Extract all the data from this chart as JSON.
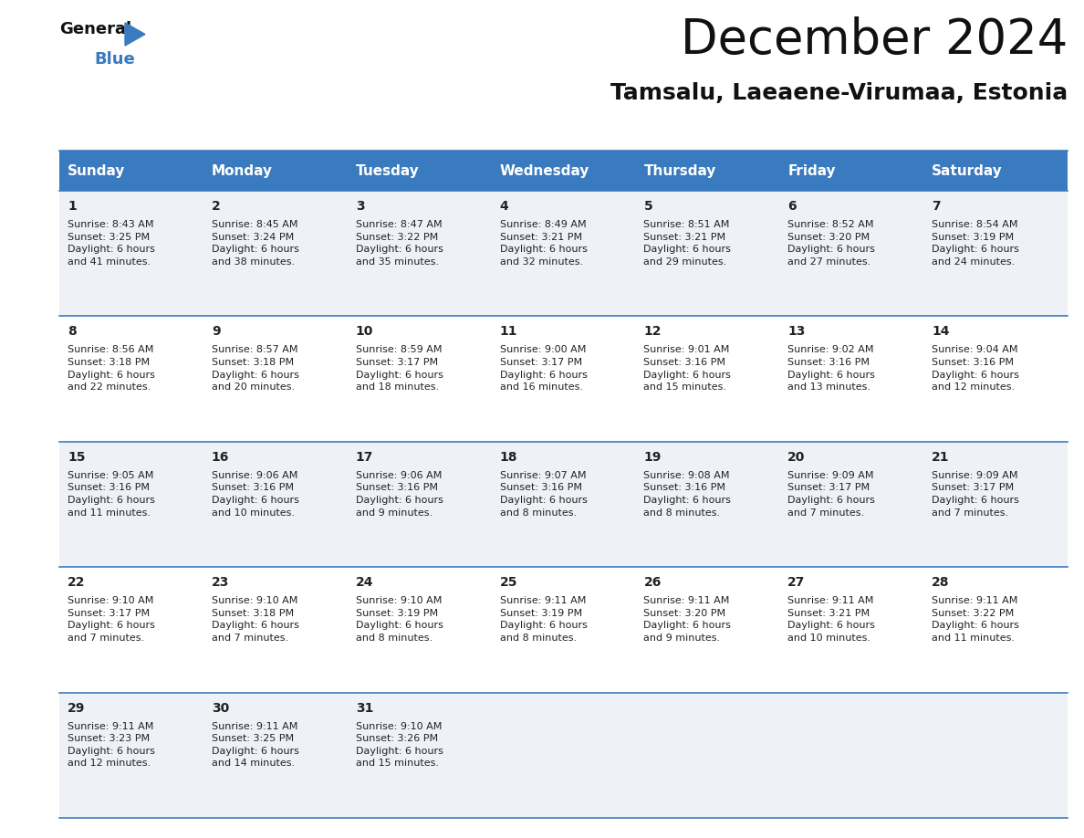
{
  "title": "December 2024",
  "subtitle": "Tamsalu, Laeaene-Virumaa, Estonia",
  "header_bg": "#3a7bbf",
  "header_text": "#ffffff",
  "row_bg_odd": "#eef2f7",
  "row_bg_even": "#ffffff",
  "last_row_bg": "#eef2f7",
  "cell_text": "#222222",
  "border_color": "#3a7bbf",
  "days_of_week": [
    "Sunday",
    "Monday",
    "Tuesday",
    "Wednesday",
    "Thursday",
    "Friday",
    "Saturday"
  ],
  "calendar": [
    [
      {
        "day": "1",
        "info": "Sunrise: 8:43 AM\nSunset: 3:25 PM\nDaylight: 6 hours\nand 41 minutes."
      },
      {
        "day": "2",
        "info": "Sunrise: 8:45 AM\nSunset: 3:24 PM\nDaylight: 6 hours\nand 38 minutes."
      },
      {
        "day": "3",
        "info": "Sunrise: 8:47 AM\nSunset: 3:22 PM\nDaylight: 6 hours\nand 35 minutes."
      },
      {
        "day": "4",
        "info": "Sunrise: 8:49 AM\nSunset: 3:21 PM\nDaylight: 6 hours\nand 32 minutes."
      },
      {
        "day": "5",
        "info": "Sunrise: 8:51 AM\nSunset: 3:21 PM\nDaylight: 6 hours\nand 29 minutes."
      },
      {
        "day": "6",
        "info": "Sunrise: 8:52 AM\nSunset: 3:20 PM\nDaylight: 6 hours\nand 27 minutes."
      },
      {
        "day": "7",
        "info": "Sunrise: 8:54 AM\nSunset: 3:19 PM\nDaylight: 6 hours\nand 24 minutes."
      }
    ],
    [
      {
        "day": "8",
        "info": "Sunrise: 8:56 AM\nSunset: 3:18 PM\nDaylight: 6 hours\nand 22 minutes."
      },
      {
        "day": "9",
        "info": "Sunrise: 8:57 AM\nSunset: 3:18 PM\nDaylight: 6 hours\nand 20 minutes."
      },
      {
        "day": "10",
        "info": "Sunrise: 8:59 AM\nSunset: 3:17 PM\nDaylight: 6 hours\nand 18 minutes."
      },
      {
        "day": "11",
        "info": "Sunrise: 9:00 AM\nSunset: 3:17 PM\nDaylight: 6 hours\nand 16 minutes."
      },
      {
        "day": "12",
        "info": "Sunrise: 9:01 AM\nSunset: 3:16 PM\nDaylight: 6 hours\nand 15 minutes."
      },
      {
        "day": "13",
        "info": "Sunrise: 9:02 AM\nSunset: 3:16 PM\nDaylight: 6 hours\nand 13 minutes."
      },
      {
        "day": "14",
        "info": "Sunrise: 9:04 AM\nSunset: 3:16 PM\nDaylight: 6 hours\nand 12 minutes."
      }
    ],
    [
      {
        "day": "15",
        "info": "Sunrise: 9:05 AM\nSunset: 3:16 PM\nDaylight: 6 hours\nand 11 minutes."
      },
      {
        "day": "16",
        "info": "Sunrise: 9:06 AM\nSunset: 3:16 PM\nDaylight: 6 hours\nand 10 minutes."
      },
      {
        "day": "17",
        "info": "Sunrise: 9:06 AM\nSunset: 3:16 PM\nDaylight: 6 hours\nand 9 minutes."
      },
      {
        "day": "18",
        "info": "Sunrise: 9:07 AM\nSunset: 3:16 PM\nDaylight: 6 hours\nand 8 minutes."
      },
      {
        "day": "19",
        "info": "Sunrise: 9:08 AM\nSunset: 3:16 PM\nDaylight: 6 hours\nand 8 minutes."
      },
      {
        "day": "20",
        "info": "Sunrise: 9:09 AM\nSunset: 3:17 PM\nDaylight: 6 hours\nand 7 minutes."
      },
      {
        "day": "21",
        "info": "Sunrise: 9:09 AM\nSunset: 3:17 PM\nDaylight: 6 hours\nand 7 minutes."
      }
    ],
    [
      {
        "day": "22",
        "info": "Sunrise: 9:10 AM\nSunset: 3:17 PM\nDaylight: 6 hours\nand 7 minutes."
      },
      {
        "day": "23",
        "info": "Sunrise: 9:10 AM\nSunset: 3:18 PM\nDaylight: 6 hours\nand 7 minutes."
      },
      {
        "day": "24",
        "info": "Sunrise: 9:10 AM\nSunset: 3:19 PM\nDaylight: 6 hours\nand 8 minutes."
      },
      {
        "day": "25",
        "info": "Sunrise: 9:11 AM\nSunset: 3:19 PM\nDaylight: 6 hours\nand 8 minutes."
      },
      {
        "day": "26",
        "info": "Sunrise: 9:11 AM\nSunset: 3:20 PM\nDaylight: 6 hours\nand 9 minutes."
      },
      {
        "day": "27",
        "info": "Sunrise: 9:11 AM\nSunset: 3:21 PM\nDaylight: 6 hours\nand 10 minutes."
      },
      {
        "day": "28",
        "info": "Sunrise: 9:11 AM\nSunset: 3:22 PM\nDaylight: 6 hours\nand 11 minutes."
      }
    ],
    [
      {
        "day": "29",
        "info": "Sunrise: 9:11 AM\nSunset: 3:23 PM\nDaylight: 6 hours\nand 12 minutes."
      },
      {
        "day": "30",
        "info": "Sunrise: 9:11 AM\nSunset: 3:25 PM\nDaylight: 6 hours\nand 14 minutes."
      },
      {
        "day": "31",
        "info": "Sunrise: 9:10 AM\nSunset: 3:26 PM\nDaylight: 6 hours\nand 15 minutes."
      },
      {
        "day": "",
        "info": ""
      },
      {
        "day": "",
        "info": ""
      },
      {
        "day": "",
        "info": ""
      },
      {
        "day": "",
        "info": ""
      }
    ]
  ],
  "logo_general_color": "#111111",
  "logo_blue_color": "#3a7bbf",
  "logo_triangle_color": "#3a7bbf",
  "title_fontsize": 38,
  "subtitle_fontsize": 18,
  "header_fontsize": 11,
  "day_num_fontsize": 10,
  "cell_info_fontsize": 8
}
